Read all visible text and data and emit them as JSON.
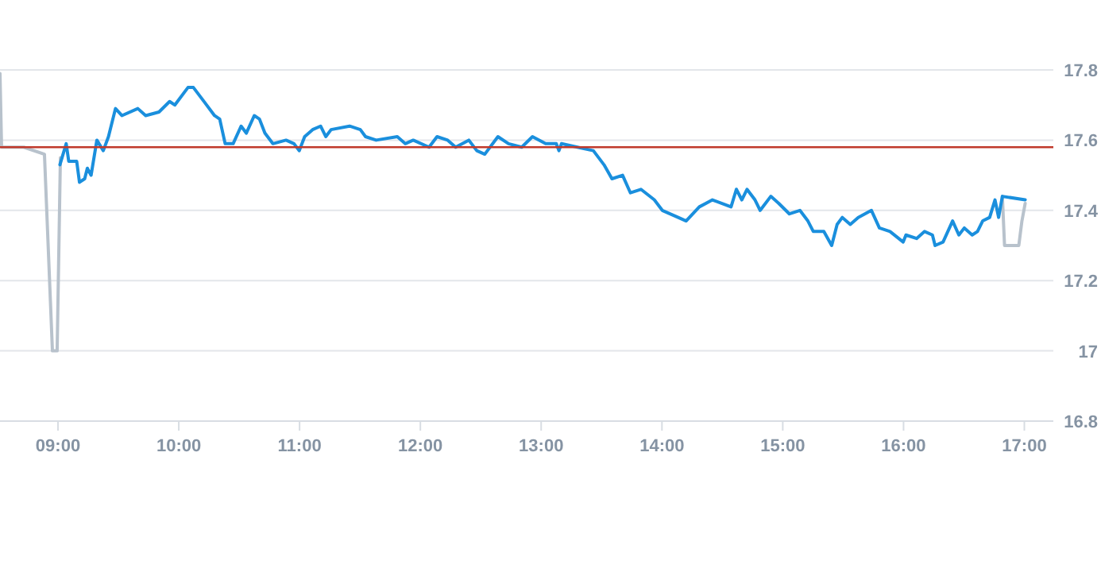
{
  "chart_data": {
    "type": "line",
    "xlim": [
      8.52,
      17.24
    ],
    "xticks": [
      {
        "value": 9,
        "label": "09:00"
      },
      {
        "value": 10,
        "label": "10:00"
      },
      {
        "value": 11,
        "label": "11:00"
      },
      {
        "value": 12,
        "label": "12:00"
      },
      {
        "value": 13,
        "label": "13:00"
      },
      {
        "value": 14,
        "label": "14:00"
      },
      {
        "value": 15,
        "label": "15:00"
      },
      {
        "value": 16,
        "label": "16:00"
      },
      {
        "value": 17,
        "label": "17:00"
      }
    ],
    "ylim": [
      16.8,
      17.8
    ],
    "yticks": [
      16.8,
      17,
      17.2,
      17.4,
      17.6,
      17.8
    ],
    "grid": "y",
    "marker": "none",
    "line_style": "solid",
    "ref_lines": [
      {
        "axis": "y",
        "value": 17.58,
        "color": "#c0392b"
      }
    ],
    "series": [
      {
        "color": "#b8c2cc",
        "x": [
          8.52,
          8.533,
          8.717,
          8.888,
          8.954,
          8.993,
          9.02
        ],
        "values": [
          17.79,
          17.58,
          17.58,
          17.56,
          17.0,
          17.0,
          17.55
        ]
      },
      {
        "color": "#b8c2cc",
        "x": [
          16.818,
          16.836,
          16.954,
          16.98,
          17.007
        ],
        "values": [
          17.44,
          17.3,
          17.3,
          17.37,
          17.42
        ]
      },
      {
        "color": "#1a8fdd",
        "x": [
          9.016,
          9.068,
          9.089,
          9.155,
          9.178,
          9.221,
          9.243,
          9.274,
          9.322,
          9.375,
          9.418,
          9.476,
          9.529,
          9.661,
          9.726,
          9.836,
          9.924,
          9.967,
          10.076,
          10.121,
          10.187,
          10.296,
          10.339,
          10.384,
          10.45,
          10.516,
          10.559,
          10.625,
          10.668,
          10.713,
          10.779,
          10.888,
          10.954,
          10.997,
          11.042,
          11.108,
          11.174,
          11.217,
          11.261,
          11.414,
          11.503,
          11.546,
          11.634,
          11.809,
          11.875,
          11.941,
          12.072,
          12.138,
          12.226,
          12.292,
          12.401,
          12.467,
          12.533,
          12.642,
          12.73,
          12.839,
          12.928,
          13.037,
          13.125,
          13.147,
          13.168,
          13.3,
          13.432,
          13.52,
          13.586,
          13.674,
          13.739,
          13.826,
          13.937,
          14.003,
          14.134,
          14.2,
          14.309,
          14.418,
          14.572,
          14.616,
          14.661,
          14.704,
          14.77,
          14.813,
          14.901,
          14.967,
          15.055,
          15.142,
          15.208,
          15.253,
          15.34,
          15.405,
          15.45,
          15.493,
          15.559,
          15.625,
          15.734,
          15.8,
          15.888,
          15.997,
          16.02,
          16.108,
          16.174,
          16.239,
          16.261,
          16.327,
          16.406,
          16.458,
          16.503,
          16.568,
          16.612,
          16.655,
          16.713,
          16.757,
          16.787,
          16.818,
          17.007
        ],
        "values": [
          17.53,
          17.59,
          17.54,
          17.54,
          17.48,
          17.49,
          17.52,
          17.5,
          17.6,
          17.57,
          17.61,
          17.69,
          17.67,
          17.69,
          17.67,
          17.68,
          17.71,
          17.7,
          17.75,
          17.75,
          17.72,
          17.67,
          17.66,
          17.59,
          17.59,
          17.64,
          17.62,
          17.67,
          17.66,
          17.62,
          17.59,
          17.6,
          17.59,
          17.57,
          17.61,
          17.63,
          17.64,
          17.61,
          17.63,
          17.64,
          17.63,
          17.61,
          17.6,
          17.61,
          17.59,
          17.6,
          17.58,
          17.61,
          17.6,
          17.58,
          17.6,
          17.57,
          17.56,
          17.61,
          17.59,
          17.58,
          17.61,
          17.59,
          17.59,
          17.57,
          17.59,
          17.58,
          17.57,
          17.53,
          17.49,
          17.5,
          17.45,
          17.46,
          17.43,
          17.4,
          17.38,
          17.37,
          17.41,
          17.43,
          17.41,
          17.46,
          17.43,
          17.46,
          17.43,
          17.4,
          17.44,
          17.42,
          17.39,
          17.4,
          17.37,
          17.34,
          17.34,
          17.3,
          17.36,
          17.38,
          17.36,
          17.38,
          17.4,
          17.35,
          17.34,
          17.31,
          17.33,
          17.32,
          17.34,
          17.33,
          17.3,
          17.31,
          17.37,
          17.33,
          17.35,
          17.33,
          17.34,
          17.37,
          17.38,
          17.43,
          17.38,
          17.44,
          17.43
        ]
      }
    ]
  }
}
